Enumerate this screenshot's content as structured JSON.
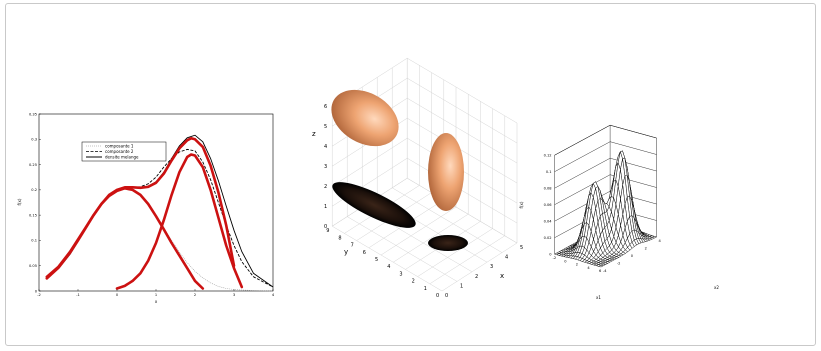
{
  "chart_data": [
    {
      "type": "line",
      "title": "",
      "xlabel": "x",
      "ylabel": "f(x)",
      "xlim": [
        -2,
        4
      ],
      "ylim": [
        0,
        0.35
      ],
      "x_ticks": [
        "-2",
        "-1",
        "0",
        "1",
        "2",
        "3",
        "4"
      ],
      "y_ticks": [
        "0",
        "0.05",
        "0.1",
        "0.15",
        "0.2",
        "0.25",
        "0.3",
        "0.35"
      ],
      "legend": {
        "position": "top-left",
        "entries": [
          "composante 1",
          "composante 2",
          "densite melange"
        ]
      },
      "series": [
        {
          "name": "composante 1",
          "style": "dotted",
          "color": "#999999",
          "x": [
            -1.8,
            -1.5,
            -1.2,
            -1.0,
            -0.8,
            -0.6,
            -0.4,
            -0.2,
            0.0,
            0.2,
            0.4,
            0.6,
            0.8,
            1.0,
            1.2,
            1.4,
            1.6,
            1.8,
            2.0,
            2.2,
            2.4,
            2.6,
            2.8,
            3.0,
            3.2,
            3.5,
            4.0
          ],
          "y": [
            0.025,
            0.045,
            0.075,
            0.1,
            0.125,
            0.15,
            0.172,
            0.188,
            0.198,
            0.203,
            0.2,
            0.19,
            0.173,
            0.15,
            0.125,
            0.1,
            0.077,
            0.056,
            0.039,
            0.026,
            0.016,
            0.009,
            0.005,
            0.003,
            0.002,
            0.001,
            0.0
          ]
        },
        {
          "name": "composante 2",
          "style": "dashed",
          "color": "#000000",
          "x": [
            -1.8,
            -1.5,
            -1.2,
            -1.0,
            -0.8,
            -0.6,
            -0.4,
            -0.2,
            0.0,
            0.2,
            0.4,
            0.6,
            0.8,
            1.0,
            1.2,
            1.4,
            1.6,
            1.8,
            2.0,
            2.2,
            2.4,
            2.6,
            2.8,
            3.0,
            3.2,
            3.5,
            4.0
          ],
          "y": [
            0.025,
            0.045,
            0.075,
            0.1,
            0.125,
            0.15,
            0.172,
            0.19,
            0.2,
            0.205,
            0.205,
            0.206,
            0.212,
            0.225,
            0.245,
            0.262,
            0.275,
            0.28,
            0.277,
            0.255,
            0.22,
            0.175,
            0.13,
            0.09,
            0.058,
            0.028,
            0.008
          ]
        },
        {
          "name": "densite melange",
          "style": "solid",
          "color": "#000000",
          "x": [
            -1.8,
            -1.5,
            -1.2,
            -1.0,
            -0.8,
            -0.6,
            -0.4,
            -0.2,
            0.0,
            0.2,
            0.4,
            0.6,
            0.8,
            1.0,
            1.2,
            1.4,
            1.6,
            1.8,
            2.0,
            2.2,
            2.4,
            2.6,
            2.8,
            3.0,
            3.2,
            3.5,
            4.0
          ],
          "y": [
            0.025,
            0.044,
            0.073,
            0.098,
            0.123,
            0.148,
            0.17,
            0.188,
            0.198,
            0.203,
            0.204,
            0.204,
            0.207,
            0.216,
            0.235,
            0.262,
            0.287,
            0.303,
            0.308,
            0.295,
            0.262,
            0.218,
            0.168,
            0.12,
            0.078,
            0.035,
            0.008
          ]
        },
        {
          "name": "",
          "style": "thick",
          "color": "#cc1111",
          "x": [
            -1.8,
            -1.5,
            -1.2,
            -1.0,
            -0.8,
            -0.6,
            -0.4,
            -0.2,
            0.0,
            0.2,
            0.4,
            0.6,
            0.8,
            1.0,
            1.2,
            1.4,
            1.6,
            1.8,
            1.9,
            2.0,
            2.2,
            2.4,
            2.6,
            2.8,
            3.0
          ],
          "y": [
            0.028,
            0.048,
            0.078,
            0.102,
            0.126,
            0.15,
            0.172,
            0.19,
            0.2,
            0.205,
            0.205,
            0.204,
            0.206,
            0.214,
            0.232,
            0.258,
            0.282,
            0.298,
            0.302,
            0.3,
            0.285,
            0.248,
            0.195,
            0.13,
            0.05
          ]
        },
        {
          "name": "",
          "style": "thick",
          "color": "#cc1111",
          "x": [
            -1.8,
            -1.5,
            -1.2,
            -1.0,
            -0.8,
            -0.6,
            -0.4,
            -0.2,
            0.0,
            0.2,
            0.4,
            0.6,
            0.8,
            1.0,
            1.2,
            1.4,
            1.6,
            1.8,
            2.0,
            2.2
          ],
          "y": [
            0.025,
            0.046,
            0.076,
            0.1,
            0.125,
            0.15,
            0.172,
            0.188,
            0.198,
            0.203,
            0.2,
            0.19,
            0.172,
            0.148,
            0.122,
            0.095,
            0.07,
            0.045,
            0.02,
            0.005
          ]
        },
        {
          "name": "",
          "style": "thick",
          "color": "#cc1111",
          "x": [
            0.0,
            0.2,
            0.4,
            0.6,
            0.8,
            1.0,
            1.2,
            1.4,
            1.6,
            1.8,
            1.9,
            2.0,
            2.2,
            2.4,
            2.6,
            2.8,
            3.0,
            3.2
          ],
          "y": [
            0.005,
            0.01,
            0.02,
            0.035,
            0.06,
            0.095,
            0.14,
            0.19,
            0.235,
            0.265,
            0.27,
            0.268,
            0.245,
            0.2,
            0.145,
            0.09,
            0.045,
            0.008
          ]
        }
      ]
    },
    {
      "type": "other",
      "xlabel": "x",
      "ylabel": "y",
      "zlabel": "z",
      "x_ticks": [
        "0",
        "1",
        "2",
        "3",
        "4",
        "5"
      ],
      "y_ticks": [
        "0",
        "1",
        "2",
        "3",
        "4",
        "5",
        "6",
        "7",
        "8",
        "9"
      ],
      "z_ticks": [
        "0",
        "1",
        "2",
        "3",
        "4",
        "5",
        "6"
      ],
      "ellipsoid_color": "#e69a6a",
      "shadow_color": "#1a0f0a"
    },
    {
      "type": "surface",
      "xlabel": "x1",
      "ylabel": "x2",
      "zlabel": "f(x)",
      "z_ticks": [
        "0",
        "0.02",
        "0.04",
        "0.06",
        "0.08",
        "0.1",
        "0.12"
      ],
      "x1_ticks": [
        "-2",
        "0",
        "2",
        "4",
        "6"
      ],
      "x2_ticks": [
        "-4",
        "-2",
        "0",
        "2",
        "4"
      ]
    }
  ]
}
